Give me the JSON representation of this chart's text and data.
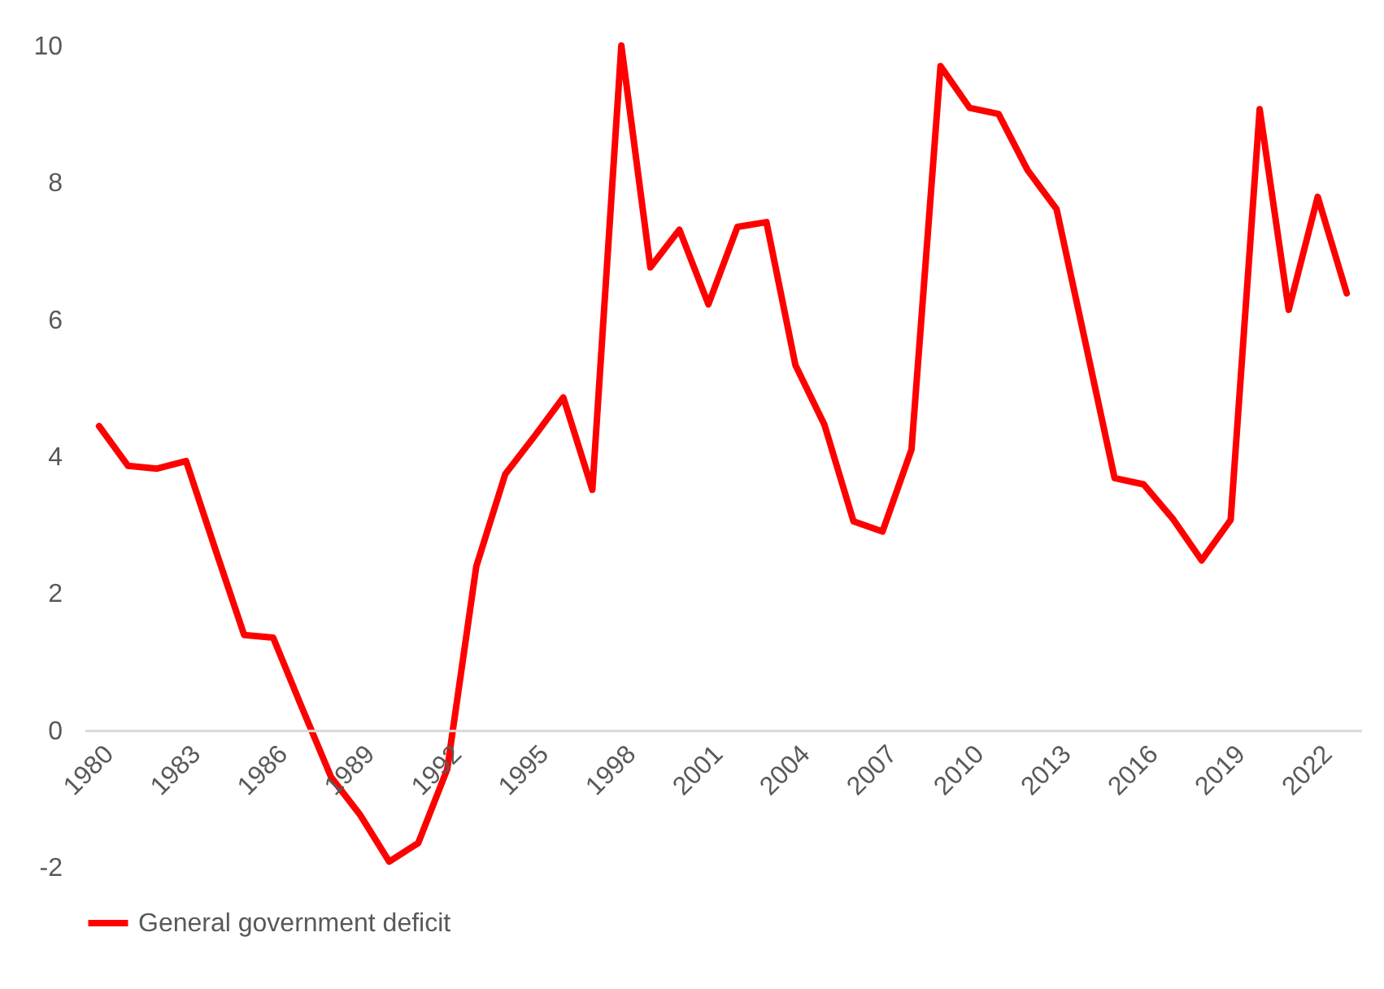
{
  "chart_data": {
    "type": "line",
    "categories": [
      "1980",
      null,
      null,
      "1983",
      null,
      null,
      "1986",
      null,
      null,
      "1989",
      null,
      null,
      "1992",
      null,
      null,
      "1995",
      null,
      null,
      "1998",
      null,
      null,
      "2001",
      null,
      null,
      "2004",
      null,
      null,
      "2007",
      null,
      null,
      "2010",
      null,
      null,
      "2013",
      null,
      null,
      "2016",
      null,
      null,
      "2019",
      null,
      null,
      "2022",
      null
    ],
    "series": [
      {
        "name": "General government deficit",
        "color": "#ff0000",
        "values": [
          4.44,
          3.86,
          3.82,
          3.93,
          2.65,
          1.39,
          1.35,
          0.32,
          -0.69,
          -1.24,
          -1.92,
          -1.65,
          -0.57,
          2.39,
          3.74,
          4.29,
          4.86,
          3.51,
          10.0,
          6.76,
          7.31,
          6.22,
          7.35,
          7.42,
          5.33,
          4.46,
          3.05,
          2.9,
          4.1,
          9.7,
          9.09,
          9.0,
          8.18,
          7.61,
          5.65,
          3.68,
          3.59,
          3.09,
          2.48,
          3.07,
          9.07,
          6.14,
          7.79,
          6.38
        ]
      }
    ],
    "ylim": [
      -2,
      10
    ],
    "yticks": [
      -2,
      0,
      2,
      4,
      6,
      8,
      10
    ],
    "grid": false,
    "legend": "bottom",
    "marker": "none",
    "line_style": "solid"
  }
}
